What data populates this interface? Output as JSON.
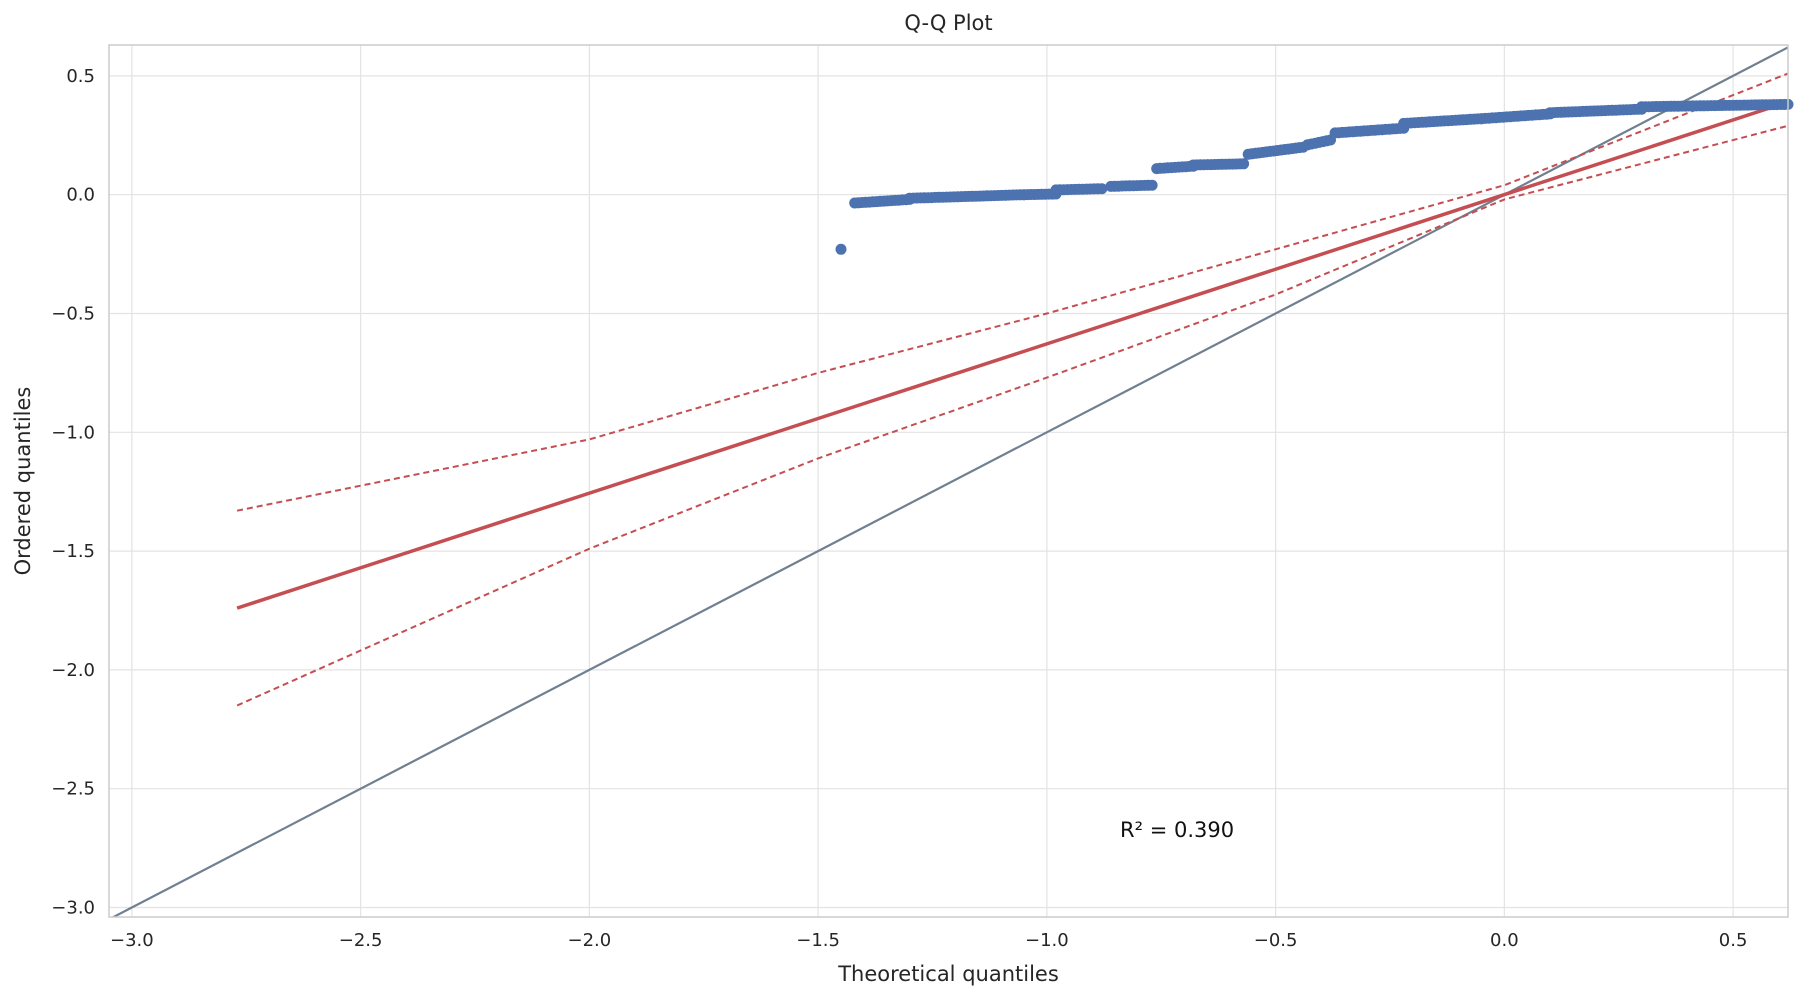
{
  "chart_data": {
    "type": "scatter",
    "title": "Q-Q Plot",
    "xlabel": "Theoretical quantiles",
    "ylabel": "Ordered quantiles",
    "xlim": [
      -3.05,
      0.62
    ],
    "ylim": [
      -3.04,
      0.63
    ],
    "x_ticks": [
      -3.0,
      -2.5,
      -2.0,
      -1.5,
      -1.0,
      -0.5,
      0.0,
      0.5
    ],
    "y_ticks": [
      -3.0,
      -2.5,
      -2.0,
      -1.5,
      -1.0,
      -0.5,
      0.0,
      0.5
    ],
    "x_tick_labels": [
      "−3.0",
      "−2.5",
      "−2.0",
      "−1.5",
      "−1.0",
      "−0.5",
      "0.0",
      "0.5"
    ],
    "y_tick_labels": [
      "−3.0",
      "−2.5",
      "−2.0",
      "−1.5",
      "−1.0",
      "−0.5",
      "0.0",
      "0.5"
    ],
    "grid": true,
    "annotation": {
      "text": "R² = 0.390",
      "x": -0.84,
      "y": -2.67
    },
    "reference_line": {
      "points": [
        [
          -3.05,
          -3.05
        ],
        [
          0.63,
          0.63
        ]
      ],
      "color": "#708090"
    },
    "fit_line": {
      "points": [
        [
          -2.77,
          -1.74
        ],
        [
          0.62,
          0.39
        ]
      ],
      "color": "#c44e52"
    },
    "confidence_band": {
      "upper": [
        [
          -2.77,
          -1.33
        ],
        [
          -2.0,
          -1.03
        ],
        [
          -1.5,
          -0.75
        ],
        [
          -1.0,
          -0.5
        ],
        [
          -0.5,
          -0.23
        ],
        [
          0.0,
          0.04
        ],
        [
          0.62,
          0.51
        ]
      ],
      "lower": [
        [
          -2.77,
          -2.15
        ],
        [
          -2.0,
          -1.49
        ],
        [
          -1.5,
          -1.11
        ],
        [
          -1.0,
          -0.77
        ],
        [
          -0.5,
          -0.42
        ],
        [
          0.0,
          -0.02
        ],
        [
          0.62,
          0.29
        ]
      ],
      "color": "#c44e52"
    },
    "points_color": "#4c72b0",
    "points_segments": [
      {
        "x0": -1.45,
        "x1": -1.45,
        "y0": -0.23,
        "y1": -0.23
      },
      {
        "x0": -1.42,
        "x1": -1.3,
        "y0": -0.035,
        "y1": -0.02
      },
      {
        "x0": -1.3,
        "x1": -1.05,
        "y0": -0.015,
        "y1": 0.0
      },
      {
        "x0": -1.05,
        "x1": -0.98,
        "y0": 0.0,
        "y1": 0.003
      },
      {
        "x0": -0.98,
        "x1": -0.88,
        "y0": 0.02,
        "y1": 0.025
      },
      {
        "x0": -0.86,
        "x1": -0.77,
        "y0": 0.035,
        "y1": 0.04
      },
      {
        "x0": -0.76,
        "x1": -0.68,
        "y0": 0.11,
        "y1": 0.12
      },
      {
        "x0": -0.68,
        "x1": -0.57,
        "y0": 0.125,
        "y1": 0.13
      },
      {
        "x0": -0.56,
        "x1": -0.44,
        "y0": 0.17,
        "y1": 0.2
      },
      {
        "x0": -0.43,
        "x1": -0.38,
        "y0": 0.21,
        "y1": 0.23
      },
      {
        "x0": -0.37,
        "x1": -0.22,
        "y0": 0.26,
        "y1": 0.28
      },
      {
        "x0": -0.22,
        "x1": -0.05,
        "y0": 0.3,
        "y1": 0.32
      },
      {
        "x0": -0.05,
        "x1": 0.1,
        "y0": 0.32,
        "y1": 0.34
      },
      {
        "x0": 0.1,
        "x1": 0.3,
        "y0": 0.345,
        "y1": 0.36
      },
      {
        "x0": 0.3,
        "x1": 0.62,
        "y0": 0.37,
        "y1": 0.38
      }
    ]
  }
}
